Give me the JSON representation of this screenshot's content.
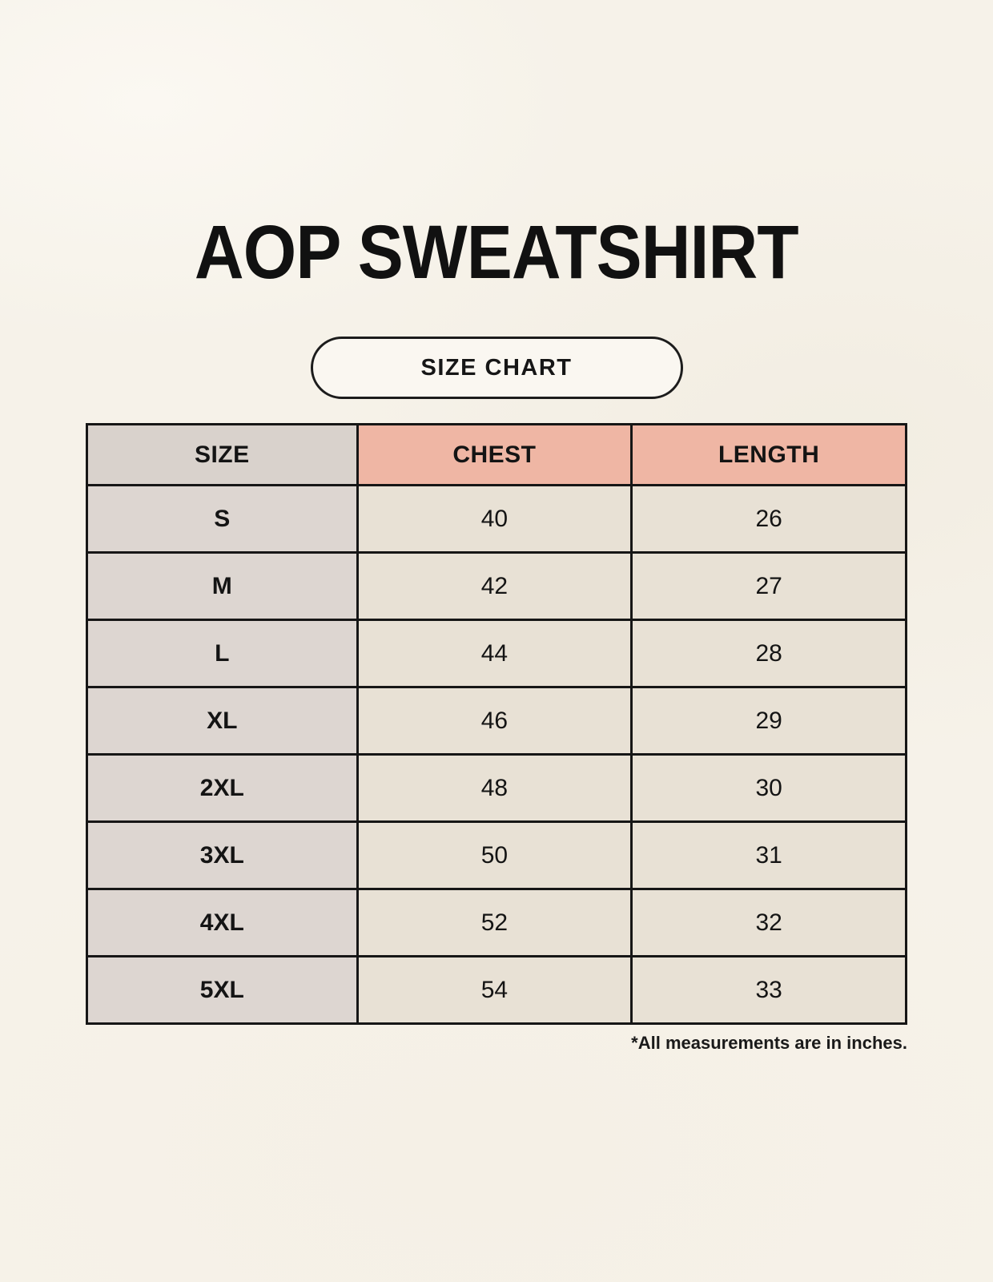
{
  "header": {
    "badge_label": "SIZE CHART"
  },
  "chart_data": {
    "type": "table",
    "title": "AOP SWEATSHIRT",
    "columns": [
      "SIZE",
      "CHEST",
      "LENGTH"
    ],
    "rows": [
      [
        "S",
        "40",
        "26"
      ],
      [
        "M",
        "42",
        "27"
      ],
      [
        "L",
        "44",
        "28"
      ],
      [
        "XL",
        "46",
        "29"
      ],
      [
        "2XL",
        "48",
        "30"
      ],
      [
        "3XL",
        "50",
        "31"
      ],
      [
        "4XL",
        "52",
        "32"
      ],
      [
        "5XL",
        "54",
        "33"
      ]
    ],
    "note": "*All measurements are in inches.",
    "layout": {
      "units": "inches",
      "header_accent_color": "#efb6a4",
      "size_column_color": "#ddd6d1",
      "value_cell_color": "#e8e1d5",
      "border_color": "#161616",
      "background_color": "#f6f2e9"
    }
  }
}
